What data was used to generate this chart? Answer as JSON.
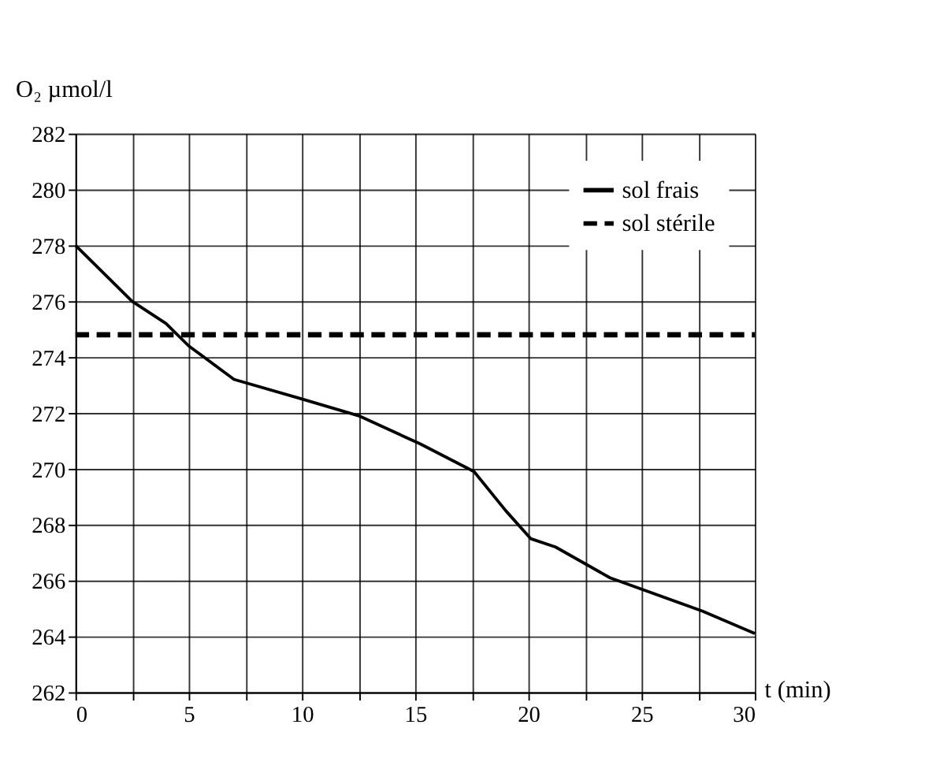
{
  "chart_data": {
    "type": "line",
    "xlabel": "t (min)",
    "ylabel": "O₂ µmol/l",
    "series": [
      {
        "name": "sol frais",
        "color": "#000000",
        "line_style": "solid",
        "x": [
          0,
          2.5,
          4,
          5,
          7,
          10,
          12.5,
          15.2,
          17.6,
          19,
          20.1,
          21.2,
          23.6,
          27.7,
          30
        ],
        "values": [
          278,
          276,
          275.2,
          274.4,
          273.2,
          272.5,
          271.9,
          270.9,
          269.9,
          268.5,
          267.5,
          267.2,
          266.1,
          264.9,
          264.1
        ]
      },
      {
        "name": "sol stérile",
        "color": "#000000",
        "line_style": "dashed",
        "x": [
          0,
          30
        ],
        "values": [
          274.8,
          274.8
        ]
      }
    ],
    "xlim": [
      0,
      30
    ],
    "ylim": [
      262,
      282
    ],
    "xticks": [
      0,
      {
        "value": 2.5,
        "label": null
      },
      5,
      {
        "value": 7.5,
        "label": null
      },
      10,
      {
        "value": 12.5,
        "label": null
      },
      15,
      {
        "value": 17.5,
        "label": null
      },
      20,
      {
        "value": 22.5,
        "label": null
      },
      25,
      {
        "value": 27.5,
        "label": null
      },
      30
    ],
    "yticks": [
      262,
      264,
      266,
      268,
      270,
      272,
      274,
      276,
      278,
      280,
      282
    ],
    "grid": true,
    "legend": "top right",
    "marker": "none"
  }
}
